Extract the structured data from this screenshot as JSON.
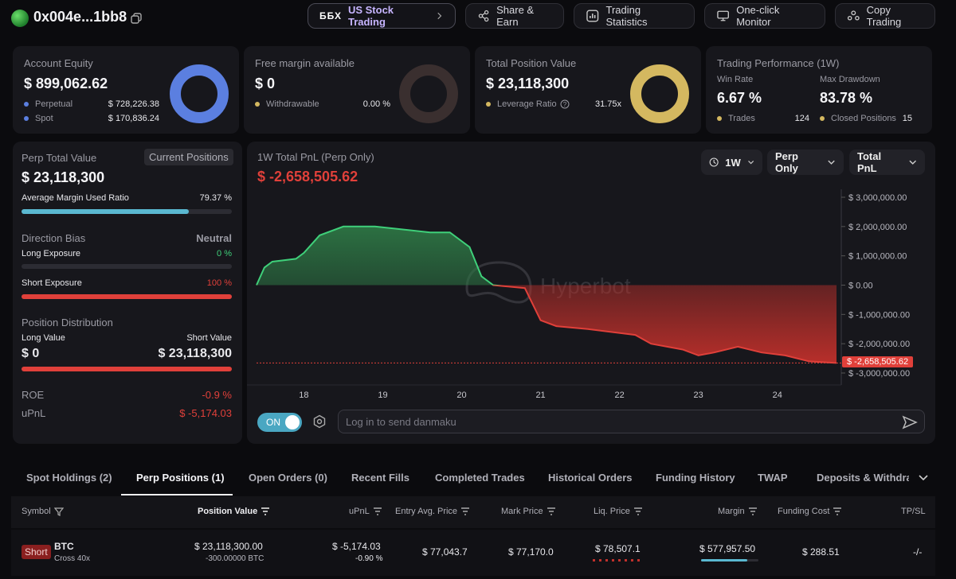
{
  "header": {
    "address": "0x004e...1bb8",
    "buttons": [
      {
        "label": "US Stock Trading",
        "brand": "ББХ"
      },
      {
        "label": "Share & Earn"
      },
      {
        "label": "Trading Statistics"
      },
      {
        "label": "One-click Monitor"
      },
      {
        "label": "Copy Trading"
      }
    ]
  },
  "account_equity": {
    "title": "Account Equity",
    "value": "$ 899,062.62",
    "rows": [
      {
        "label": "Perpetual",
        "value": "$ 728,226.38",
        "color": "#5b7fe0"
      },
      {
        "label": "Spot",
        "value": "$ 170,836.24",
        "color": "#5b7fe0"
      }
    ],
    "donut_color": "#5b7fe0",
    "donut_fraction": 1.0
  },
  "free_margin": {
    "title": "Free margin available",
    "value": "$ 0",
    "rows": [
      {
        "label": "Withdrawable",
        "value": "0.00 %",
        "color": "#d4b860"
      }
    ],
    "donut_color": "#3a2f2f",
    "donut_fraction": 1.0
  },
  "total_position": {
    "title": "Total Position Value",
    "value": "$ 23,118,300",
    "rows": [
      {
        "label": "Leverage Ratio",
        "value": "31.75x",
        "color": "#d4b860"
      }
    ],
    "donut_color": "#d4b860",
    "donut_fraction": 1.0
  },
  "performance": {
    "title": "Trading Performance (1W)",
    "win_rate_label": "Win Rate",
    "win_rate": "6.67 %",
    "max_drawdown_label": "Max Drawdown",
    "max_drawdown": "83.78 %",
    "trades_label": "Trades",
    "trades": "124",
    "closed_label": "Closed Positions",
    "closed": "15"
  },
  "perp_panel": {
    "title": "Perp Total Value",
    "current_positions_btn": "Current Positions",
    "value": "$ 23,118,300",
    "margin_label": "Average Margin Used Ratio",
    "margin_value": "79.37 %",
    "margin_fraction": 0.7937,
    "direction_label": "Direction Bias",
    "direction_value": "Neutral",
    "long_exposure_label": "Long Exposure",
    "long_exposure_value": "0 %",
    "long_fraction": 0,
    "short_exposure_label": "Short Exposure",
    "short_exposure_value": "100 %",
    "short_fraction": 1,
    "distribution_label": "Position Distribution",
    "long_value_label": "Long Value",
    "long_value": "$ 0",
    "short_value_label": "Short Value",
    "short_value": "$ 23,118,300",
    "roe_label": "ROE",
    "roe_value": "-0.9 %",
    "upnl_label": "uPnL",
    "upnl_value": "$ -5,174.03"
  },
  "pnl_chart": {
    "title": "1W Total PnL (Perp Only)",
    "value": "$ -2,658,505.62",
    "range_select": "1W",
    "scope_select": "Perp Only",
    "metric_select": "Total PnL",
    "watermark": "Hyperbot",
    "toggle_label": "ON",
    "danmaku_placeholder": "Log in to send danmaku",
    "current_label": "$ -2,658,505.62"
  },
  "chart_data": {
    "type": "area",
    "title": "1W Total PnL (Perp Only)",
    "xlabel": "",
    "ylabel": "",
    "x_ticks": [
      "18",
      "19",
      "20",
      "21",
      "22",
      "23",
      "24"
    ],
    "y_ticks": [
      "$ 3,000,000.00",
      "$ 2,000,000.00",
      "$ 1,000,000.00",
      "$ 0.00",
      "$ -1,000,000.00",
      "$ -2,000,000.00",
      "$ -3,000,000.00"
    ],
    "ylim": [
      -3000000,
      3000000
    ],
    "xlim": [
      17.4,
      24.75
    ],
    "grid": false,
    "series": [
      {
        "x": [
          17.4,
          17.5,
          17.6,
          17.9,
          18.0,
          18.2,
          18.5,
          18.9,
          19.6,
          19.85,
          20.1,
          20.25,
          20.4,
          20.8,
          21.0,
          21.2,
          21.6,
          22.2,
          22.4,
          22.8,
          23.0,
          23.2,
          23.5,
          23.8,
          24.1,
          24.4,
          24.75
        ],
        "y": [
          0,
          600000,
          800000,
          900000,
          1100000,
          1700000,
          2000000,
          2000000,
          1800000,
          1800000,
          1300000,
          300000,
          0,
          -100000,
          -1200000,
          -1400000,
          -1500000,
          -1700000,
          -2000000,
          -2200000,
          -2400000,
          -2300000,
          -2100000,
          -2300000,
          -2400000,
          -2600000,
          -2658505
        ]
      }
    ]
  },
  "tabs": [
    "Spot Holdings (2)",
    "Perp Positions (1)",
    "Open Orders (0)",
    "Recent Fills",
    "Completed Trades",
    "Historical Orders",
    "Funding History",
    "TWAP",
    "Deposits & Withdraw"
  ],
  "table": {
    "headers": [
      "Symbol",
      "Position Value",
      "uPnL",
      "Entry Avg. Price",
      "Mark Price",
      "Liq. Price",
      "Margin",
      "Funding Cost",
      "TP/SL"
    ],
    "row": {
      "side": "Short",
      "symbol": "BTC",
      "mode": "Cross 40x",
      "position_value": "$ 23,118,300.00",
      "position_size": "-300.00000 BTC",
      "upnl": "$ -5,174.03",
      "upnl_pct": "-0.90 %",
      "entry": "$ 77,043.7",
      "mark": "$ 77,170.0",
      "liq": "$ 78,507.1",
      "margin": "$ 577,957.50",
      "funding": "$ 288.51",
      "tpsl": "-/-"
    }
  }
}
